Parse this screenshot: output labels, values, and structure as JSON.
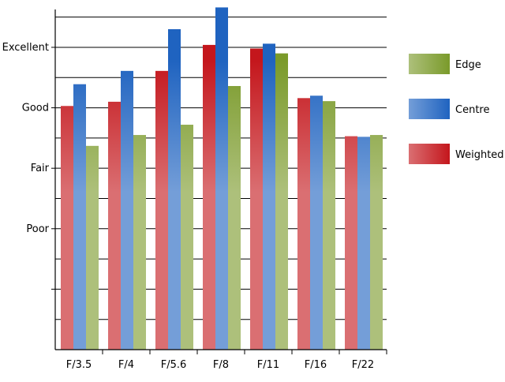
{
  "chart_data": {
    "type": "bar",
    "categories": [
      "F/3.5",
      "F/4",
      "F/5.6",
      "F/8",
      "F/11",
      "F/16",
      "F/22"
    ],
    "series": [
      {
        "name": "Weighted",
        "values": [
          3.03,
          3.1,
          3.61,
          4.04,
          3.98,
          3.16,
          2.53
        ],
        "color": "#c4161c"
      },
      {
        "name": "Centre",
        "values": [
          3.39,
          3.61,
          4.3,
          4.66,
          4.06,
          3.2,
          2.52
        ],
        "color": "#1f63c0"
      },
      {
        "name": "Edge",
        "values": [
          2.37,
          2.55,
          2.72,
          3.36,
          3.9,
          3.11,
          2.55
        ],
        "color": "#7a9a2a"
      }
    ],
    "yticks": [
      {
        "value": 1,
        "label": "Poor"
      },
      {
        "value": 2,
        "label": "Fair"
      },
      {
        "value": 3,
        "label": "Good"
      },
      {
        "value": 4,
        "label": "Excellent"
      }
    ],
    "legend_order": [
      "Edge",
      "Centre",
      "Weighted"
    ],
    "ylim": [
      -1,
      4.6
    ],
    "grid": true,
    "legend_position": "right",
    "title": "",
    "xlabel": "",
    "ylabel": ""
  }
}
